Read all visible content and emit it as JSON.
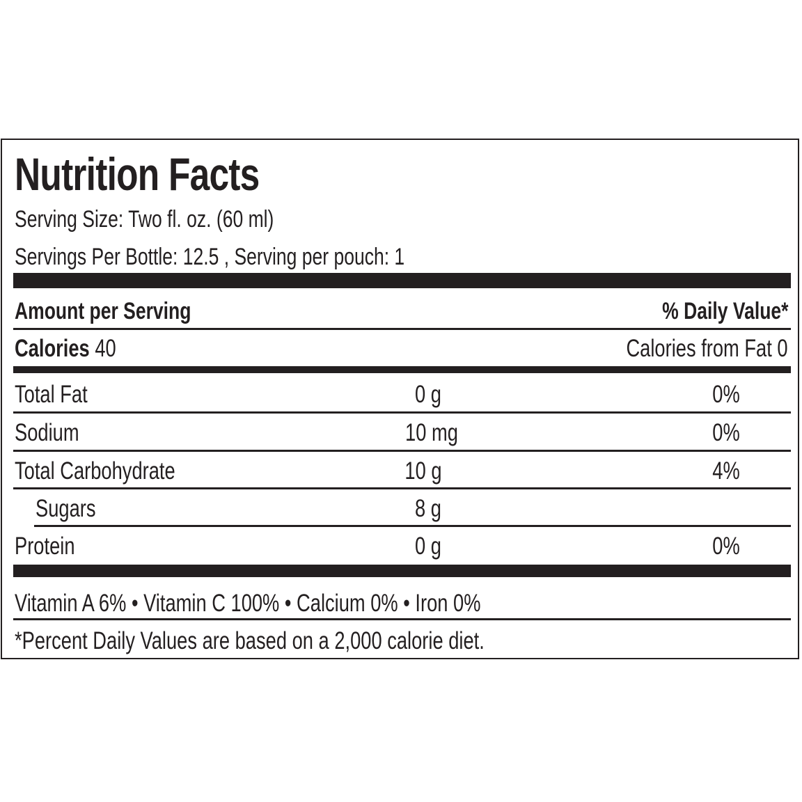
{
  "title": "Nutrition Facts",
  "serving_size": "Serving Size: Two fl. oz. (60 ml)",
  "servings_per": "Servings Per Bottle: 12.5 , Serving per pouch: 1",
  "amount_header": "Amount per Serving",
  "dv_header": "% Daily Value*",
  "calories": {
    "label": "Calories",
    "value": "40",
    "from_fat": "Calories from Fat 0"
  },
  "nutrients": [
    {
      "name": "Total Fat",
      "amount": "0 g",
      "dv": "0%"
    },
    {
      "name": "Sodium",
      "amount": "10 mg",
      "dv": "0%"
    },
    {
      "name": "Total Carbohydrate",
      "amount": "10 g",
      "dv": "4%"
    },
    {
      "name": "Sugars",
      "amount": "8 g",
      "dv": ""
    },
    {
      "name": "Protein",
      "amount": "0 g",
      "dv": "0%"
    }
  ],
  "vitamins": "Vitamin A 6% • Vitamin C 100% • Calcium 0% • Iron 0%",
  "footnote": "*Percent Daily Values are based on a 2,000 calorie diet."
}
